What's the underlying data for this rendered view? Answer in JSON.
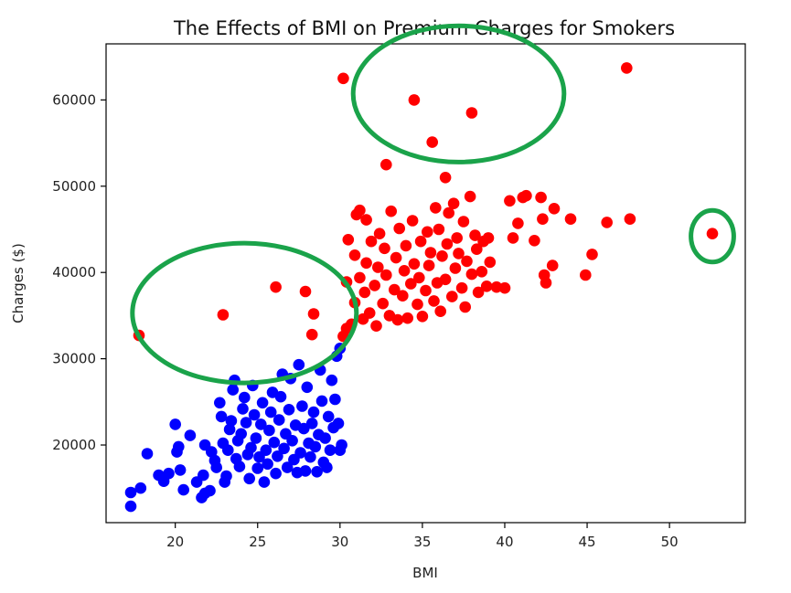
{
  "chart_data": {
    "type": "scatter",
    "title": "The Effects of BMI on Premium Charges for Smokers",
    "xlabel": "BMI",
    "ylabel": "Charges ($)",
    "xlim": [
      15.8,
      54.6
    ],
    "ylim": [
      11000,
      66500
    ],
    "xticks": [
      20,
      25,
      30,
      35,
      40,
      45,
      50
    ],
    "yticks": [
      20000,
      30000,
      40000,
      50000,
      60000
    ],
    "grid": false,
    "colors": {
      "blue": "#0000ff",
      "red": "#ff0000",
      "annotation": "#1aa34a"
    },
    "series": [
      {
        "color": "blue",
        "points": [
          [
            17.3,
            14500
          ],
          [
            17.3,
            12900
          ],
          [
            17.9,
            15000
          ],
          [
            18.3,
            19000
          ],
          [
            19.0,
            16500
          ],
          [
            19.3,
            15800
          ],
          [
            19.6,
            16700
          ],
          [
            20.0,
            22400
          ],
          [
            20.1,
            19200
          ],
          [
            20.2,
            19800
          ],
          [
            20.3,
            17100
          ],
          [
            20.5,
            14800
          ],
          [
            20.9,
            21100
          ],
          [
            21.3,
            15700
          ],
          [
            21.6,
            13900
          ],
          [
            21.7,
            16500
          ],
          [
            21.8,
            14400
          ],
          [
            21.8,
            20000
          ],
          [
            22.1,
            14700
          ],
          [
            22.2,
            19200
          ],
          [
            22.4,
            18200
          ],
          [
            22.5,
            17400
          ],
          [
            22.7,
            24900
          ],
          [
            22.8,
            23300
          ],
          [
            22.9,
            20200
          ],
          [
            23.0,
            15700
          ],
          [
            23.1,
            16400
          ],
          [
            23.2,
            19400
          ],
          [
            23.3,
            21800
          ],
          [
            23.4,
            22800
          ],
          [
            23.5,
            26400
          ],
          [
            23.6,
            27500
          ],
          [
            23.7,
            18400
          ],
          [
            23.8,
            20500
          ],
          [
            23.9,
            17500
          ],
          [
            24.0,
            21300
          ],
          [
            24.1,
            24200
          ],
          [
            24.2,
            25500
          ],
          [
            24.3,
            22600
          ],
          [
            24.4,
            18900
          ],
          [
            24.5,
            16100
          ],
          [
            24.6,
            19700
          ],
          [
            24.7,
            26900
          ],
          [
            24.8,
            23500
          ],
          [
            24.9,
            20800
          ],
          [
            25.0,
            17300
          ],
          [
            25.1,
            18600
          ],
          [
            25.2,
            22400
          ],
          [
            25.3,
            24900
          ],
          [
            25.4,
            15700
          ],
          [
            25.5,
            19400
          ],
          [
            25.6,
            17800
          ],
          [
            25.7,
            21700
          ],
          [
            25.8,
            23800
          ],
          [
            25.9,
            26100
          ],
          [
            26.0,
            20300
          ],
          [
            26.1,
            16700
          ],
          [
            26.2,
            18700
          ],
          [
            26.3,
            22900
          ],
          [
            26.4,
            25600
          ],
          [
            26.5,
            28200
          ],
          [
            26.6,
            19600
          ],
          [
            26.7,
            21300
          ],
          [
            26.8,
            17400
          ],
          [
            26.9,
            24100
          ],
          [
            27.0,
            27700
          ],
          [
            27.1,
            20500
          ],
          [
            27.2,
            18300
          ],
          [
            27.3,
            22300
          ],
          [
            27.4,
            16800
          ],
          [
            27.5,
            29300
          ],
          [
            27.6,
            19100
          ],
          [
            27.7,
            24500
          ],
          [
            27.8,
            21900
          ],
          [
            27.9,
            17000
          ],
          [
            28.0,
            26700
          ],
          [
            28.1,
            20200
          ],
          [
            28.2,
            18600
          ],
          [
            28.3,
            22500
          ],
          [
            28.4,
            23800
          ],
          [
            28.5,
            19800
          ],
          [
            28.6,
            16900
          ],
          [
            28.7,
            21200
          ],
          [
            28.8,
            28700
          ],
          [
            28.9,
            25100
          ],
          [
            29.0,
            18000
          ],
          [
            29.1,
            20800
          ],
          [
            29.2,
            17400
          ],
          [
            29.3,
            23300
          ],
          [
            29.4,
            19400
          ],
          [
            29.5,
            27500
          ],
          [
            29.6,
            22000
          ],
          [
            29.7,
            25300
          ],
          [
            29.8,
            30300
          ],
          [
            29.9,
            22500
          ],
          [
            30.0,
            19400
          ],
          [
            30.0,
            31200
          ],
          [
            30.1,
            20000
          ]
        ]
      },
      {
        "color": "red",
        "points": [
          [
            17.8,
            32700
          ],
          [
            22.9,
            35100
          ],
          [
            26.1,
            38300
          ],
          [
            27.9,
            37800
          ],
          [
            28.4,
            35200
          ],
          [
            28.3,
            32800
          ],
          [
            30.2,
            62500
          ],
          [
            34.5,
            60000
          ],
          [
            38.0,
            58500
          ],
          [
            47.4,
            63700
          ],
          [
            35.6,
            55100
          ],
          [
            32.8,
            52500
          ],
          [
            36.4,
            51000
          ],
          [
            52.6,
            44500
          ],
          [
            30.2,
            32600
          ],
          [
            30.4,
            33500
          ],
          [
            30.4,
            38900
          ],
          [
            30.5,
            43800
          ],
          [
            30.7,
            34000
          ],
          [
            30.9,
            36500
          ],
          [
            30.9,
            42000
          ],
          [
            31.0,
            46700
          ],
          [
            31.2,
            39400
          ],
          [
            31.2,
            47200
          ],
          [
            31.4,
            34600
          ],
          [
            31.5,
            37700
          ],
          [
            31.6,
            41100
          ],
          [
            31.6,
            46100
          ],
          [
            31.8,
            35300
          ],
          [
            31.9,
            43600
          ],
          [
            32.1,
            38500
          ],
          [
            32.2,
            33800
          ],
          [
            32.3,
            40600
          ],
          [
            32.4,
            44500
          ],
          [
            32.6,
            36400
          ],
          [
            32.7,
            42800
          ],
          [
            32.8,
            39700
          ],
          [
            33.0,
            35000
          ],
          [
            33.1,
            47100
          ],
          [
            33.3,
            38000
          ],
          [
            33.4,
            41700
          ],
          [
            33.5,
            34500
          ],
          [
            33.6,
            45100
          ],
          [
            33.8,
            37300
          ],
          [
            33.9,
            40200
          ],
          [
            34.0,
            43100
          ],
          [
            34.1,
            34700
          ],
          [
            34.3,
            38700
          ],
          [
            34.4,
            46000
          ],
          [
            34.5,
            41000
          ],
          [
            34.7,
            36300
          ],
          [
            34.8,
            39400
          ],
          [
            34.9,
            43600
          ],
          [
            35.0,
            34900
          ],
          [
            35.2,
            37900
          ],
          [
            35.3,
            44700
          ],
          [
            35.4,
            40800
          ],
          [
            35.5,
            42300
          ],
          [
            35.7,
            36700
          ],
          [
            35.8,
            47500
          ],
          [
            35.9,
            38800
          ],
          [
            36.0,
            45000
          ],
          [
            36.1,
            35500
          ],
          [
            36.2,
            41900
          ],
          [
            36.4,
            39200
          ],
          [
            36.5,
            43300
          ],
          [
            36.6,
            46900
          ],
          [
            36.8,
            37200
          ],
          [
            36.9,
            48000
          ],
          [
            37.0,
            40500
          ],
          [
            37.1,
            44000
          ],
          [
            37.2,
            42200
          ],
          [
            37.4,
            38200
          ],
          [
            37.5,
            45900
          ],
          [
            37.6,
            36000
          ],
          [
            37.7,
            41300
          ],
          [
            37.9,
            48800
          ],
          [
            38.0,
            39800
          ],
          [
            38.2,
            44300
          ],
          [
            38.3,
            42700
          ],
          [
            38.4,
            37700
          ],
          [
            38.6,
            40100
          ],
          [
            38.7,
            43600
          ],
          [
            38.9,
            38400
          ],
          [
            39.0,
            44000
          ],
          [
            39.1,
            41200
          ],
          [
            39.5,
            38300
          ],
          [
            40.0,
            38200
          ],
          [
            40.3,
            48300
          ],
          [
            40.5,
            44000
          ],
          [
            40.8,
            45700
          ],
          [
            41.1,
            48700
          ],
          [
            41.3,
            48900
          ],
          [
            41.8,
            43700
          ],
          [
            42.2,
            48700
          ],
          [
            42.3,
            46200
          ],
          [
            42.4,
            39700
          ],
          [
            42.5,
            38800
          ],
          [
            42.9,
            40800
          ],
          [
            43.0,
            47400
          ],
          [
            44.0,
            46200
          ],
          [
            44.9,
            39700
          ],
          [
            45.3,
            42100
          ],
          [
            46.2,
            45800
          ],
          [
            47.6,
            46200
          ]
        ]
      }
    ],
    "annotations": [
      {
        "shape": "ellipse",
        "cx": 37.2,
        "cy": 60700,
        "rx": 6.4,
        "ry": 7900
      },
      {
        "shape": "ellipse",
        "cx": 24.2,
        "cy": 35300,
        "rx": 6.8,
        "ry": 8100
      },
      {
        "shape": "ellipse",
        "cx": 52.6,
        "cy": 44200,
        "rx": 1.3,
        "ry": 3000
      }
    ]
  }
}
